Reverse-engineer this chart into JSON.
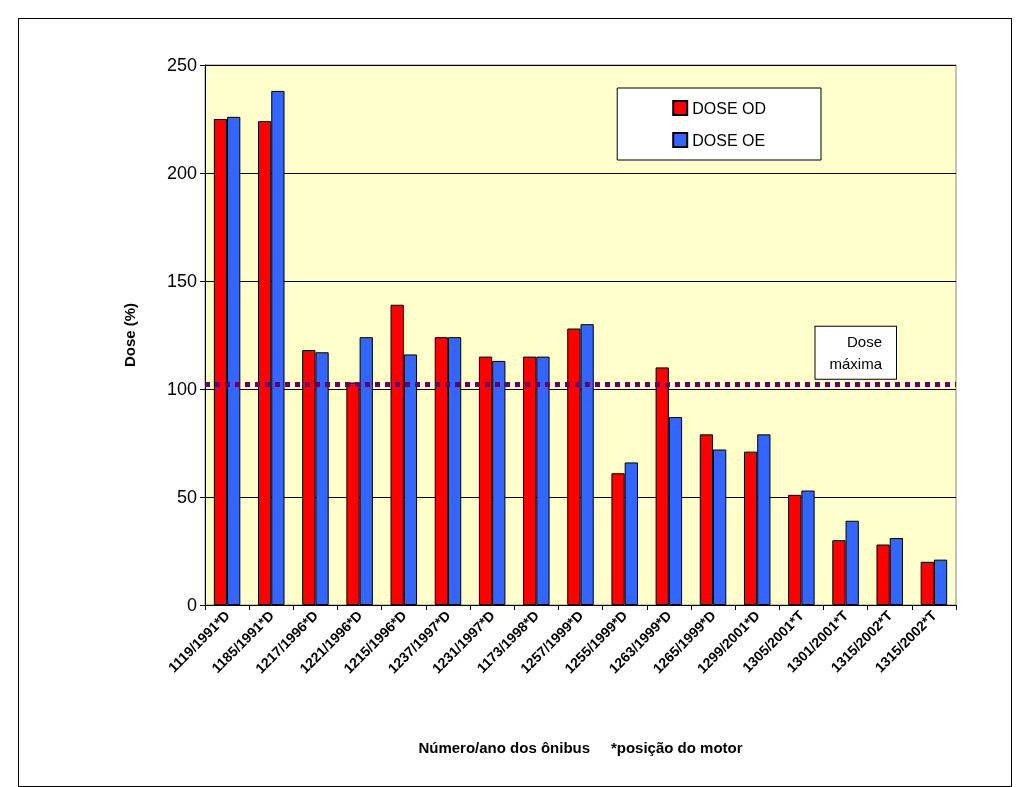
{
  "chart_data": {
    "type": "bar",
    "xlabel": "Número/ano dos ônibus     *posição do motor",
    "ylabel": "Dose (%)",
    "categories": [
      "1119/1991*D",
      "1185/1991*D",
      "1217/1996*D",
      "1221/1996*D",
      "1215/1996*D",
      "1237/1997*D",
      "1231/1997*D",
      "1173/1998*D",
      "1257/1999*D",
      "1255/1999*D",
      "1263/1999*D",
      "1265/1999*D",
      "1299/2001*D",
      "1305/2001*T",
      "1301/2001*T",
      "1315/2002*T",
      "1315/2002*T"
    ],
    "series": [
      {
        "name": "DOSE OD",
        "color": "#ff0000",
        "values": [
          225,
          224,
          118,
          103,
          139,
          124,
          115,
          115,
          128,
          61,
          110,
          79,
          71,
          51,
          30,
          28,
          20
        ]
      },
      {
        "name": "DOSE OE",
        "color": "#3366ff",
        "values": [
          226,
          238,
          117,
          124,
          116,
          124,
          113,
          115,
          130,
          66,
          87,
          72,
          79,
          53,
          39,
          31,
          21
        ]
      }
    ],
    "ylim": [
      0,
      250
    ],
    "yticks": [
      0,
      50,
      100,
      150,
      200,
      250
    ],
    "ref_lines": [
      {
        "axis": "y",
        "value": 102,
        "label": "Dose\nmáxima",
        "color": "#660066",
        "line_style": "dotted"
      }
    ],
    "grid": "y",
    "legend": "top right"
  }
}
